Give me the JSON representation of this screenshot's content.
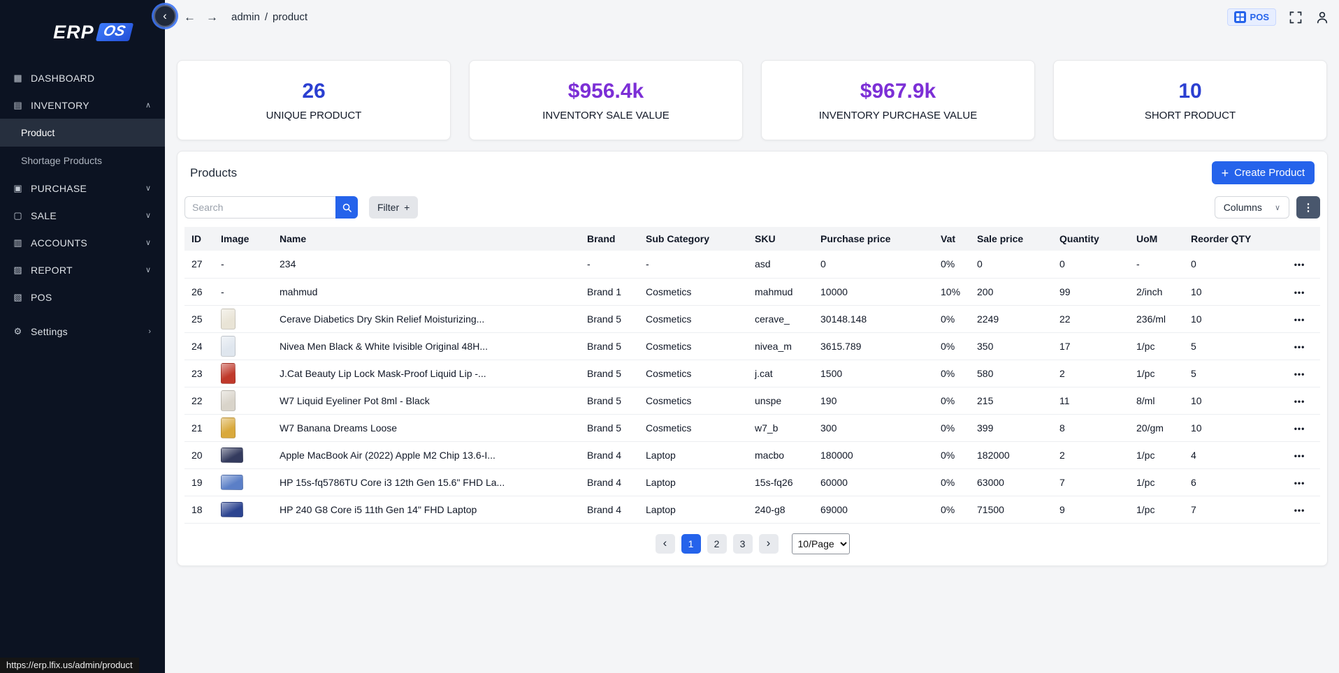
{
  "icons": {
    "dashboard-icon": "▦",
    "inventory-icon": "▤",
    "purchase-icon": "▣",
    "sale-icon": "▢",
    "accounts-icon": "▥",
    "report-icon": "▨",
    "pos-icon": "▧",
    "settings-icon": "⚙",
    "chevron-up": "∧",
    "chevron-down": "∨",
    "chevron-right": "›",
    "collapse-icon": "‹",
    "back-icon": "←",
    "forward-icon": "→",
    "plus-icon": "+",
    "ellipsis-icon": "•••",
    "page-prev-icon": "‹",
    "page-next-icon": "›"
  },
  "sidebar": {
    "logo_erp": "ERP",
    "logo_os": "OS",
    "items": [
      {
        "label": "DASHBOARD",
        "icon": "dashboard-icon",
        "chevron": null
      },
      {
        "label": "INVENTORY",
        "icon": "inventory-icon",
        "chevron": "up",
        "children": [
          {
            "label": "Product",
            "active": true
          },
          {
            "label": "Shortage Products",
            "active": false
          }
        ]
      },
      {
        "label": "PURCHASE",
        "icon": "purchase-icon",
        "chevron": "down"
      },
      {
        "label": "SALE",
        "icon": "sale-icon",
        "chevron": "down"
      },
      {
        "label": "ACCOUNTS",
        "icon": "accounts-icon",
        "chevron": "down"
      },
      {
        "label": "REPORT",
        "icon": "report-icon",
        "chevron": "down"
      },
      {
        "label": "POS",
        "icon": "pos-icon",
        "chevron": null
      },
      {
        "label": "Settings",
        "icon": "settings-icon",
        "chevron": "right",
        "gap_before": true
      }
    ],
    "status_url": "https://erp.lfix.us/admin/product"
  },
  "topbar": {
    "breadcrumb_section": "admin",
    "breadcrumb_separator": "/",
    "breadcrumb_page": "product",
    "pos_label": "POS"
  },
  "stats": [
    {
      "value": "26",
      "label": "UNIQUE PRODUCT",
      "color": "#2b3fd1"
    },
    {
      "value": "$956.4k",
      "label": "INVENTORY SALE VALUE",
      "color": "#7c2fd6"
    },
    {
      "value": "$967.9k",
      "label": "INVENTORY PURCHASE VALUE",
      "color": "#7c2fd6"
    },
    {
      "value": "10",
      "label": "SHORT PRODUCT",
      "color": "#2b3fd1"
    }
  ],
  "products": {
    "title": "Products",
    "create_button_label": "Create Product",
    "search_placeholder": "Search",
    "filter_label": "Filter",
    "columns_label": "Columns",
    "table": {
      "headers": [
        "ID",
        "Image",
        "Name",
        "Brand",
        "Sub Category",
        "SKU",
        "Purchase price",
        "Vat",
        "Sale price",
        "Quantity",
        "UoM",
        "Reorder QTY",
        ""
      ],
      "rows": [
        {
          "id": "27",
          "image_text": "-",
          "name": "234",
          "brand": "-",
          "sub_category": "-",
          "sku": "asd",
          "purchase_price": "0",
          "vat": "0%",
          "sale_price": "0",
          "quantity": "0",
          "uom": "-",
          "reorder_qty": "0"
        },
        {
          "id": "26",
          "image_text": "-",
          "name": "mahmud",
          "brand": "Brand 1",
          "sub_category": "Cosmetics",
          "sku": "mahmud",
          "purchase_price": "10000",
          "vat": "10%",
          "sale_price": "200",
          "quantity": "99",
          "uom": "2/inch",
          "reorder_qty": "10"
        },
        {
          "id": "25",
          "image": {
            "color": "#e9e4d6",
            "shape": "portrait"
          },
          "name": "Cerave Diabetics Dry Skin Relief Moisturizing...",
          "brand": "Brand 5",
          "sub_category": "Cosmetics",
          "sku": "cerave_",
          "purchase_price": "30148.148",
          "vat": "0%",
          "sale_price": "2249",
          "quantity": "22",
          "uom": "236/ml",
          "reorder_qty": "10"
        },
        {
          "id": "24",
          "image": {
            "color": "#dfe6ee",
            "shape": "portrait"
          },
          "name": "Nivea Men Black & White Ivisible Original 48H...",
          "brand": "Brand 5",
          "sub_category": "Cosmetics",
          "sku": "nivea_m",
          "purchase_price": "3615.789",
          "vat": "0%",
          "sale_price": "350",
          "quantity": "17",
          "uom": "1/pc",
          "reorder_qty": "5"
        },
        {
          "id": "23",
          "image": {
            "color": "#c0392b",
            "shape": "portrait"
          },
          "name": "J.Cat Beauty Lip Lock Mask-Proof Liquid Lip -...",
          "brand": "Brand 5",
          "sub_category": "Cosmetics",
          "sku": "j.cat",
          "purchase_price": "1500",
          "vat": "0%",
          "sale_price": "580",
          "quantity": "2",
          "uom": "1/pc",
          "reorder_qty": "5"
        },
        {
          "id": "22",
          "image": {
            "color": "#d9d4ca",
            "shape": "portrait"
          },
          "name": "W7 Liquid Eyeliner Pot 8ml - Black",
          "brand": "Brand 5",
          "sub_category": "Cosmetics",
          "sku": "unspe",
          "purchase_price": "190",
          "vat": "0%",
          "sale_price": "215",
          "quantity": "11",
          "uom": "8/ml",
          "reorder_qty": "10"
        },
        {
          "id": "21",
          "image": {
            "color": "#d9a93c",
            "shape": "portrait"
          },
          "name": "W7 Banana Dreams Loose",
          "brand": "Brand 5",
          "sub_category": "Cosmetics",
          "sku": "w7_b",
          "purchase_price": "300",
          "vat": "0%",
          "sale_price": "399",
          "quantity": "8",
          "uom": "20/gm",
          "reorder_qty": "10"
        },
        {
          "id": "20",
          "image": {
            "color": "#343b5e",
            "shape": "landscape"
          },
          "name": "Apple MacBook Air (2022) Apple M2 Chip 13.6-I...",
          "brand": "Brand 4",
          "sub_category": "Laptop",
          "sku": "macbo",
          "purchase_price": "180000",
          "vat": "0%",
          "sale_price": "182000",
          "quantity": "2",
          "uom": "1/pc",
          "reorder_qty": "4"
        },
        {
          "id": "19",
          "image": {
            "color": "#5b7fc7",
            "shape": "landscape"
          },
          "name": "HP 15s-fq5786TU Core i3 12th Gen 15.6\" FHD La...",
          "brand": "Brand 4",
          "sub_category": "Laptop",
          "sku": "15s-fq26",
          "purchase_price": "60000",
          "vat": "0%",
          "sale_price": "63000",
          "quantity": "7",
          "uom": "1/pc",
          "reorder_qty": "6"
        },
        {
          "id": "18",
          "image": {
            "color": "#2c4490",
            "shape": "landscape"
          },
          "name": "HP 240 G8 Core i5 11th Gen 14\" FHD Laptop",
          "brand": "Brand 4",
          "sub_category": "Laptop",
          "sku": "240-g8",
          "purchase_price": "69000",
          "vat": "0%",
          "sale_price": "71500",
          "quantity": "9",
          "uom": "1/pc",
          "reorder_qty": "7"
        }
      ]
    },
    "pagination": {
      "pages": [
        "1",
        "2",
        "3"
      ],
      "active": "1",
      "page_size": "10/Page"
    }
  }
}
